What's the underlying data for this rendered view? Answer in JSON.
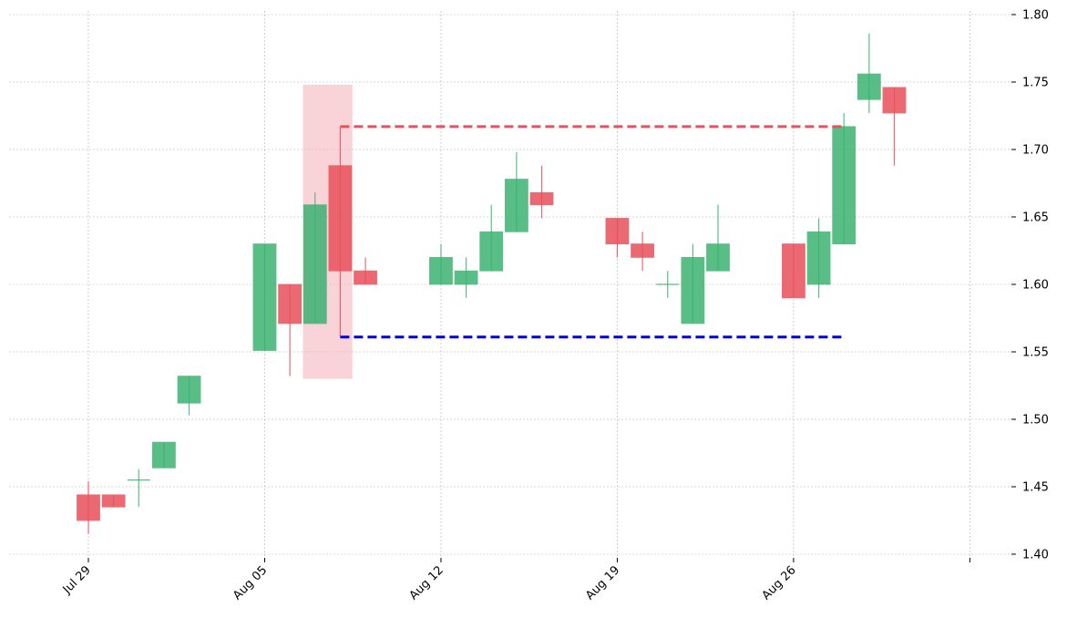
{
  "chart_data": {
    "type": "candlestick",
    "title": "",
    "xlabel": "",
    "ylabel": "",
    "ylim": [
      1.4,
      1.8
    ],
    "y_ticks": [
      "1.40",
      "1.45",
      "1.50",
      "1.55",
      "1.60",
      "1.65",
      "1.70",
      "1.75",
      "1.80"
    ],
    "x_ticks": [
      {
        "day": 0,
        "label": "Jul 29"
      },
      {
        "day": 7,
        "label": "Aug 05"
      },
      {
        "day": 14,
        "label": "Aug 12"
      },
      {
        "day": 21,
        "label": "Aug 19"
      },
      {
        "day": 28,
        "label": "Aug 26"
      },
      {
        "day": 35,
        "label": ""
      }
    ],
    "axis_side": "right",
    "grid": true,
    "day_offset_from": "2019-07-29",
    "candles": [
      {
        "day": 0,
        "date": "Jul 29",
        "open": 1.444,
        "high": 1.454,
        "low": 1.415,
        "close": 1.425
      },
      {
        "day": 1,
        "date": "Jul 30",
        "open": 1.444,
        "high": 1.444,
        "low": 1.435,
        "close": 1.435
      },
      {
        "day": 2,
        "date": "Jul 31",
        "open": 1.455,
        "high": 1.463,
        "low": 1.435,
        "close": 1.455
      },
      {
        "day": 3,
        "date": "Aug 01",
        "open": 1.464,
        "high": 1.483,
        "low": 1.464,
        "close": 1.483
      },
      {
        "day": 4,
        "date": "Aug 02",
        "open": 1.512,
        "high": 1.532,
        "low": 1.503,
        "close": 1.532
      },
      {
        "day": 7,
        "date": "Aug 05",
        "open": 1.551,
        "high": 1.63,
        "low": 1.551,
        "close": 1.63
      },
      {
        "day": 8,
        "date": "Aug 06",
        "open": 1.6,
        "high": 1.6,
        "low": 1.532,
        "close": 1.571
      },
      {
        "day": 9,
        "date": "Aug 07",
        "open": 1.571,
        "high": 1.668,
        "low": 1.571,
        "close": 1.659
      },
      {
        "day": 10,
        "date": "Aug 08",
        "open": 1.688,
        "high": 1.717,
        "low": 1.561,
        "close": 1.61
      },
      {
        "day": 11,
        "date": "Aug 09",
        "open": 1.61,
        "high": 1.62,
        "low": 1.6,
        "close": 1.6
      },
      {
        "day": 14,
        "date": "Aug 12",
        "open": 1.6,
        "high": 1.63,
        "low": 1.6,
        "close": 1.62
      },
      {
        "day": 15,
        "date": "Aug 13",
        "open": 1.6,
        "high": 1.62,
        "low": 1.59,
        "close": 1.61
      },
      {
        "day": 16,
        "date": "Aug 14",
        "open": 1.61,
        "high": 1.659,
        "low": 1.61,
        "close": 1.639
      },
      {
        "day": 17,
        "date": "Aug 15",
        "open": 1.639,
        "high": 1.698,
        "low": 1.639,
        "close": 1.678
      },
      {
        "day": 18,
        "date": "Aug 16",
        "open": 1.668,
        "high": 1.688,
        "low": 1.649,
        "close": 1.659
      },
      {
        "day": 21,
        "date": "Aug 19",
        "open": 1.649,
        "high": 1.649,
        "low": 1.62,
        "close": 1.63
      },
      {
        "day": 22,
        "date": "Aug 20",
        "open": 1.63,
        "high": 1.639,
        "low": 1.61,
        "close": 1.62
      },
      {
        "day": 23,
        "date": "Aug 21",
        "open": 1.6,
        "high": 1.61,
        "low": 1.59,
        "close": 1.6
      },
      {
        "day": 24,
        "date": "Aug 22",
        "open": 1.571,
        "high": 1.63,
        "low": 1.571,
        "close": 1.62
      },
      {
        "day": 25,
        "date": "Aug 23",
        "open": 1.61,
        "high": 1.659,
        "low": 1.61,
        "close": 1.63
      },
      {
        "day": 28,
        "date": "Aug 26",
        "open": 1.63,
        "high": 1.63,
        "low": 1.59,
        "close": 1.59
      },
      {
        "day": 29,
        "date": "Aug 27",
        "open": 1.6,
        "high": 1.649,
        "low": 1.59,
        "close": 1.639
      },
      {
        "day": 30,
        "date": "Aug 28",
        "open": 1.63,
        "high": 1.727,
        "low": 1.63,
        "close": 1.717
      },
      {
        "day": 31,
        "date": "Aug 29",
        "open": 1.737,
        "high": 1.786,
        "low": 1.727,
        "close": 1.756
      },
      {
        "day": 32,
        "date": "Aug 30",
        "open": 1.746,
        "high": 1.746,
        "low": 1.688,
        "close": 1.727
      }
    ],
    "highlight": {
      "day_start": 8.5,
      "day_end": 10.5,
      "y_low": 1.53,
      "y_high": 1.748,
      "color": "#f4a7b1"
    },
    "lines": [
      {
        "name": "",
        "style": "dashed",
        "color": "#e8505b",
        "y": 1.717,
        "day_start": 10,
        "day_end": 30
      },
      {
        "name": "",
        "style": "dashed",
        "color": "#0000dd",
        "y": 1.561,
        "day_start": 10,
        "day_end": 30
      }
    ],
    "colors": {
      "up": "#3cb371",
      "down": "#e8505b",
      "grid": "#b0b0b0",
      "axis": "#000000"
    }
  }
}
